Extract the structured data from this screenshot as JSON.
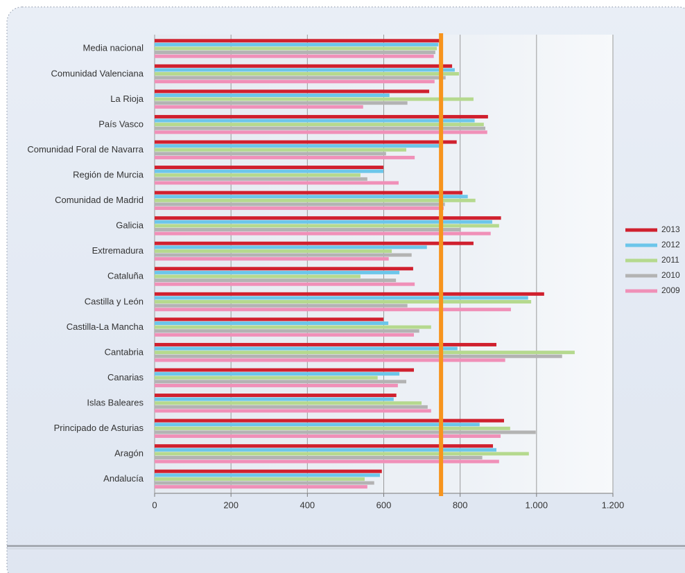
{
  "chart_data": {
    "type": "hbar",
    "categories": [
      "Media nacional",
      "Comunidad Valenciana",
      "La Rioja",
      "País Vasco",
      "Comunidad Foral de Navarra",
      "Región de Murcia",
      "Comunidad de Madrid",
      "Galicia",
      "Extremadura",
      "Cataluña",
      "Castilla y León",
      "Castilla-La Mancha",
      "Cantabria",
      "Canarias",
      "Islas Baleares",
      "Principado de Asturias",
      "Aragón",
      "Andalucía"
    ],
    "series": [
      {
        "name": "2013",
        "color": "#d0202e",
        "values": [
          747,
          779,
          719,
          873,
          791,
          599,
          806,
          907,
          835,
          677,
          1020,
          599,
          895,
          679,
          633,
          915,
          886,
          595
        ]
      },
      {
        "name": "2012",
        "color": "#6cc6ea",
        "values": [
          743,
          786,
          615,
          838,
          746,
          599,
          820,
          884,
          713,
          641,
          978,
          612,
          793,
          641,
          626,
          851,
          895,
          590
        ]
      },
      {
        "name": "2011",
        "color": "#b5d98e",
        "values": [
          739,
          797,
          835,
          862,
          659,
          539,
          840,
          902,
          621,
          539,
          986,
          724,
          1100,
          584,
          699,
          931,
          980,
          550
        ]
      },
      {
        "name": "2010",
        "color": "#b3b3b3",
        "values": [
          735,
          762,
          662,
          866,
          606,
          557,
          760,
          802,
          673,
          632,
          662,
          693,
          1067,
          659,
          715,
          998,
          858,
          575
        ]
      },
      {
        "name": "2009",
        "color": "#f090b8",
        "values": [
          731,
          733,
          546,
          871,
          681,
          639,
          757,
          880,
          613,
          681,
          933,
          679,
          918,
          637,
          724,
          906,
          902,
          557
        ]
      }
    ],
    "xlim": [
      0,
      1200
    ],
    "xticks": [
      0,
      200,
      400,
      600,
      800,
      {
        "value": 1000,
        "label": "1.000"
      },
      {
        "value": 1200,
        "label": "1.200"
      }
    ],
    "grid": true,
    "reference_line": {
      "value": 750,
      "color": "#f7941d"
    },
    "legend": "right"
  }
}
